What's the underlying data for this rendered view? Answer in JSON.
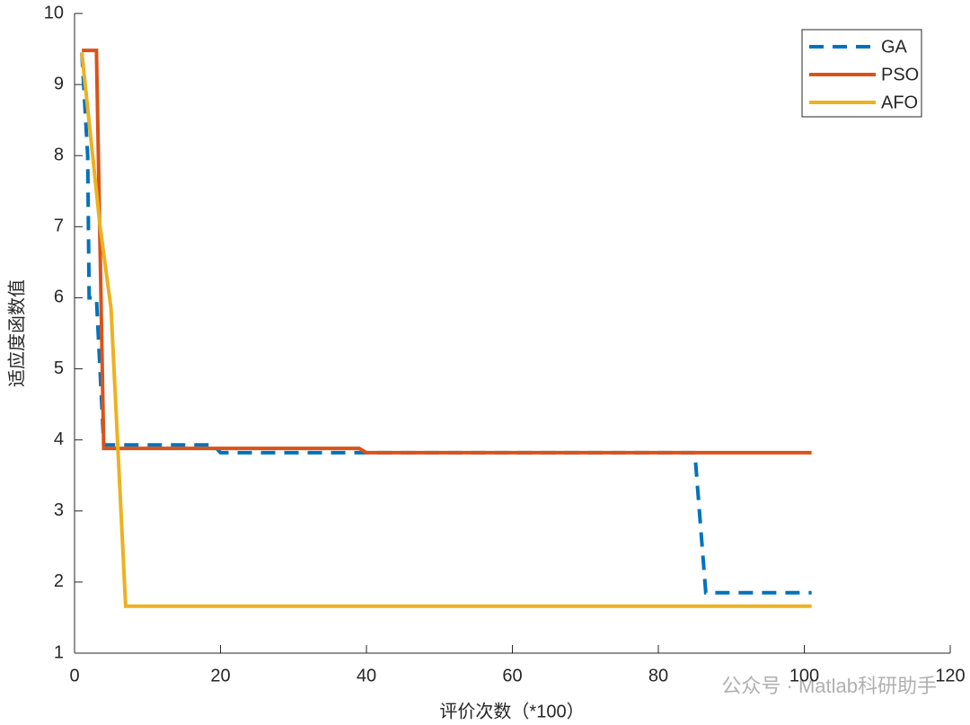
{
  "chart_data": {
    "type": "line",
    "xlabel": "评价次数（*100）",
    "ylabel": "适应度函数值",
    "watermark": "公众号 · Matlab科研助手",
    "xlim": [
      0,
      120
    ],
    "xticks": [
      0,
      20,
      40,
      60,
      80,
      100,
      120
    ],
    "ylim": [
      1,
      10
    ],
    "yticks": [
      1,
      2,
      3,
      4,
      5,
      6,
      7,
      8,
      9,
      10
    ],
    "legend": "top-right",
    "series": [
      {
        "name": "GA",
        "color": "#0072bd",
        "dashed": true,
        "x": [
          1,
          1.8,
          2,
          3,
          4,
          19,
          20,
          85,
          86.5,
          101
        ],
        "values": [
          9.45,
          8,
          6,
          6,
          3.93,
          3.93,
          3.82,
          3.82,
          1.85,
          1.85
        ]
      },
      {
        "name": "PSO",
        "color": "#d95319",
        "dashed": false,
        "x": [
          1,
          3,
          4,
          39,
          40,
          101
        ],
        "values": [
          9.48,
          9.48,
          3.88,
          3.88,
          3.82,
          3.82
        ]
      },
      {
        "name": "AFO",
        "color": "#edb120",
        "dashed": false,
        "x": [
          1,
          3.5,
          5,
          7,
          101
        ],
        "values": [
          9.45,
          7,
          5.85,
          1.66,
          1.66
        ]
      }
    ]
  }
}
